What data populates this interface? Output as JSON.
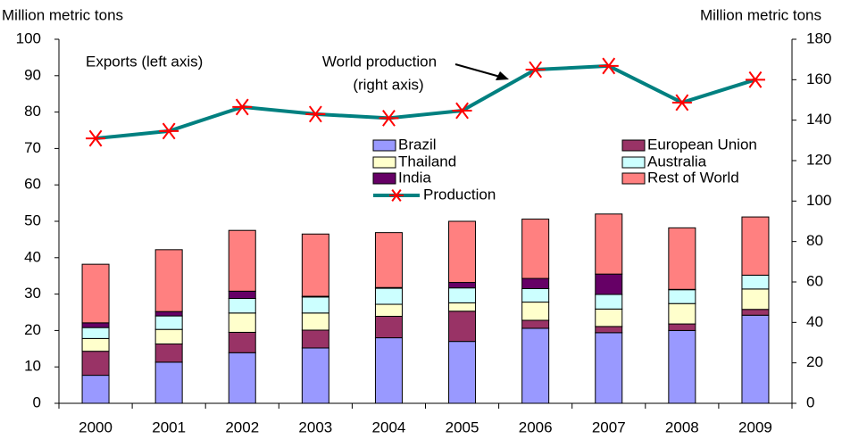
{
  "chart_data": {
    "type": "bar",
    "stacked": true,
    "ylabel": "Million metric tons",
    "y2label": "Million metric tons",
    "annotations": [
      "Exports (left axis)",
      "World production",
      "(right axis)"
    ],
    "categories": [
      "2000",
      "2001",
      "2002",
      "2003",
      "2004",
      "2005",
      "2006",
      "2007",
      "2008",
      "2009"
    ],
    "series": [
      {
        "name": "Brazil",
        "color": "#9999ff",
        "values": [
          7.7,
          11.3,
          13.9,
          15.2,
          18.0,
          17.0,
          20.6,
          19.4,
          20.0,
          24.2
        ]
      },
      {
        "name": "European Union",
        "color": "#993366",
        "values": [
          6.6,
          5.0,
          5.6,
          4.9,
          5.9,
          8.3,
          2.2,
          1.7,
          1.8,
          1.6
        ]
      },
      {
        "name": "Thailand",
        "color": "#ffffcc",
        "values": [
          3.5,
          4.0,
          5.3,
          4.7,
          3.3,
          2.3,
          5.0,
          4.8,
          5.6,
          5.6
        ]
      },
      {
        "name": "Australia",
        "color": "#ccffff",
        "values": [
          3.0,
          3.7,
          4.0,
          4.4,
          4.4,
          4.1,
          3.7,
          4.0,
          3.8,
          3.8
        ]
      },
      {
        "name": "India",
        "color": "#660066",
        "values": [
          1.3,
          1.2,
          2.0,
          0.2,
          0.2,
          1.5,
          2.8,
          5.6,
          0.1,
          0
        ]
      },
      {
        "name": "Rest of World",
        "color": "#ff8080",
        "values": [
          16.1,
          17.0,
          16.7,
          17.1,
          15.1,
          16.8,
          16.3,
          16.5,
          16.9,
          16.0
        ]
      },
      {
        "name": "Production",
        "type": "line",
        "axis": "y2",
        "color": "#008080",
        "marker_color": "#ff0000",
        "values": [
          131,
          134.6,
          146.5,
          143,
          141,
          144.7,
          165,
          166.8,
          148.7,
          160
        ]
      }
    ],
    "ylim": [
      0,
      100
    ],
    "yticks": [
      0,
      10,
      20,
      30,
      40,
      50,
      60,
      70,
      80,
      90,
      100
    ],
    "y2lim": [
      0,
      180
    ],
    "y2ticks": [
      0,
      20,
      40,
      60,
      80,
      100,
      120,
      140,
      160,
      180
    ],
    "grid": false
  }
}
